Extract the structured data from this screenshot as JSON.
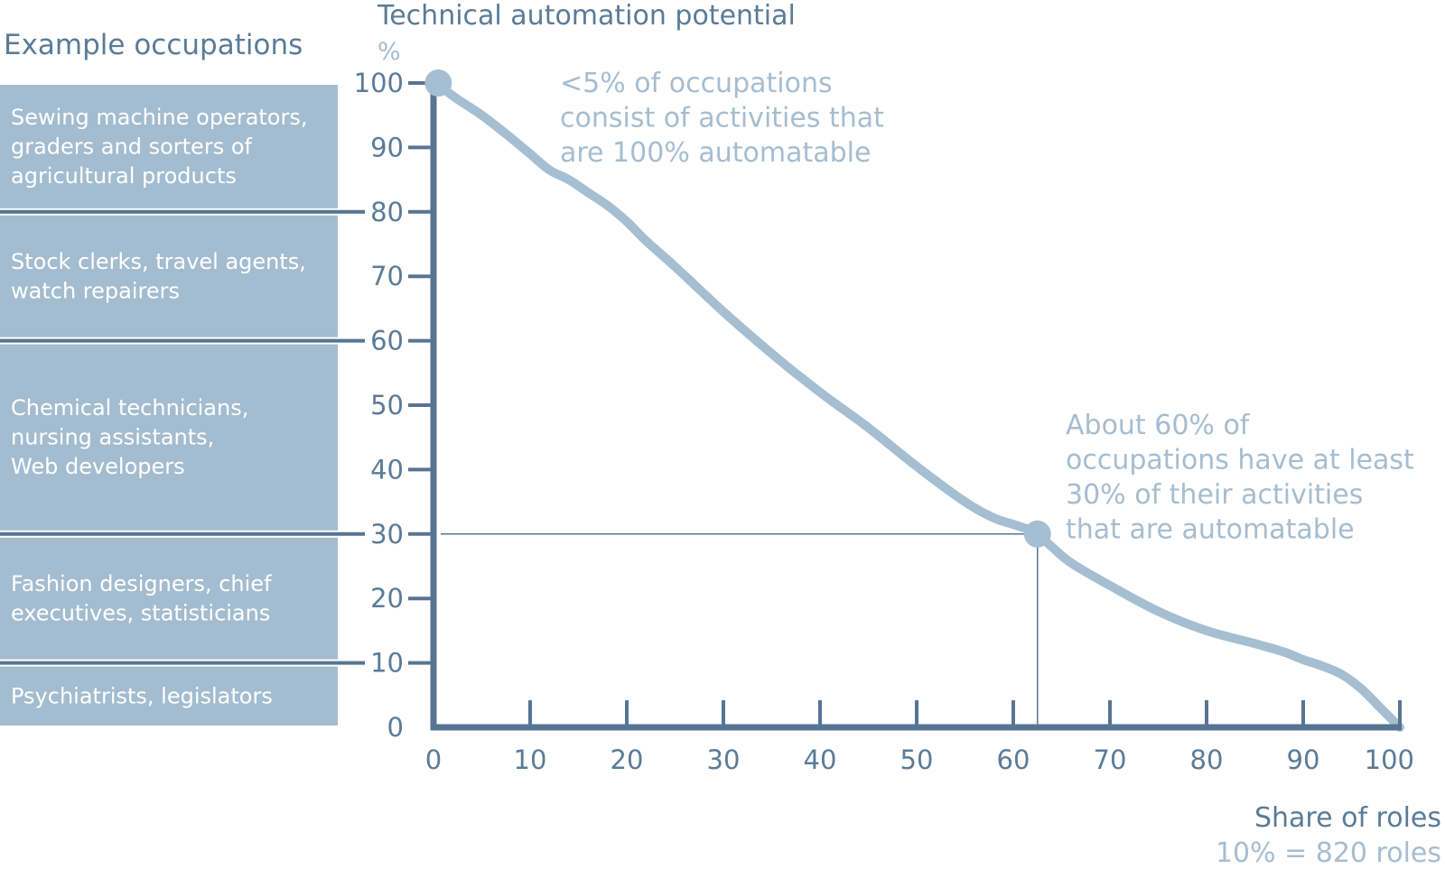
{
  "colors": {
    "axis": "#577592",
    "curve": "#a6bed2",
    "band_fill": "#a3bccf",
    "text_dark": "#5b7b97",
    "text_light": "#a6bdd0"
  },
  "left_panel": {
    "title": "Example occupations",
    "bands": [
      {
        "from": 80,
        "to": 100,
        "lines": [
          "Sewing machine operators,",
          "graders and sorters of",
          "agricultural products"
        ]
      },
      {
        "from": 60,
        "to": 80,
        "lines": [
          "Stock clerks, travel agents,",
          "watch repairers"
        ]
      },
      {
        "from": 30,
        "to": 60,
        "lines": [
          "Chemical technicians,",
          "nursing assistants,",
          "Web developers"
        ]
      },
      {
        "from": 10,
        "to": 30,
        "lines": [
          "Fashion designers, chief",
          "executives, statisticians"
        ]
      },
      {
        "from": 0,
        "to": 10,
        "lines": [
          "Psychiatrists, legislators"
        ]
      }
    ]
  },
  "chart_data": {
    "type": "line",
    "ylabel": "Technical automation potential",
    "yunit": "%",
    "xlabel": "Share of roles",
    "xnote": "10% = 820 roles",
    "xlim": [
      0,
      100
    ],
    "ylim": [
      0,
      100
    ],
    "x_ticks": [
      0,
      10,
      20,
      30,
      40,
      50,
      60,
      70,
      80,
      90,
      100
    ],
    "y_ticks": [
      0,
      10,
      20,
      30,
      40,
      50,
      60,
      70,
      80,
      90,
      100
    ],
    "series": [
      {
        "x": [
          0.5,
          2,
          5,
          8,
          10,
          12,
          14,
          16,
          18,
          20,
          22,
          25,
          30,
          35,
          40,
          45,
          50,
          55,
          58,
          60,
          62,
          62.5,
          64,
          66,
          70,
          75,
          80,
          85,
          88,
          90,
          92,
          94,
          96,
          98,
          100
        ],
        "y": [
          100,
          98,
          95,
          91.5,
          89,
          86.5,
          85,
          83,
          81,
          78.5,
          75.5,
          71.5,
          64.5,
          58,
          52,
          46.5,
          40.5,
          35,
          32.5,
          31.5,
          30.5,
          30,
          28,
          25.5,
          22,
          18,
          15,
          13,
          11.7,
          10.5,
          9.5,
          8.2,
          6,
          3,
          0
        ]
      }
    ],
    "markers": [
      {
        "x": 0.5,
        "y": 100
      },
      {
        "x": 62.5,
        "y": 30
      }
    ],
    "reference": {
      "x": 62.5,
      "y": 30
    },
    "annotations": [
      {
        "id": "top",
        "lines": [
          "<5% of occupations",
          "consist of activities that",
          "are 100% automatable"
        ]
      },
      {
        "id": "mid",
        "lines": [
          "About 60% of",
          "occupations have at least",
          "30% of their activities",
          "that are automatable"
        ]
      }
    ]
  }
}
